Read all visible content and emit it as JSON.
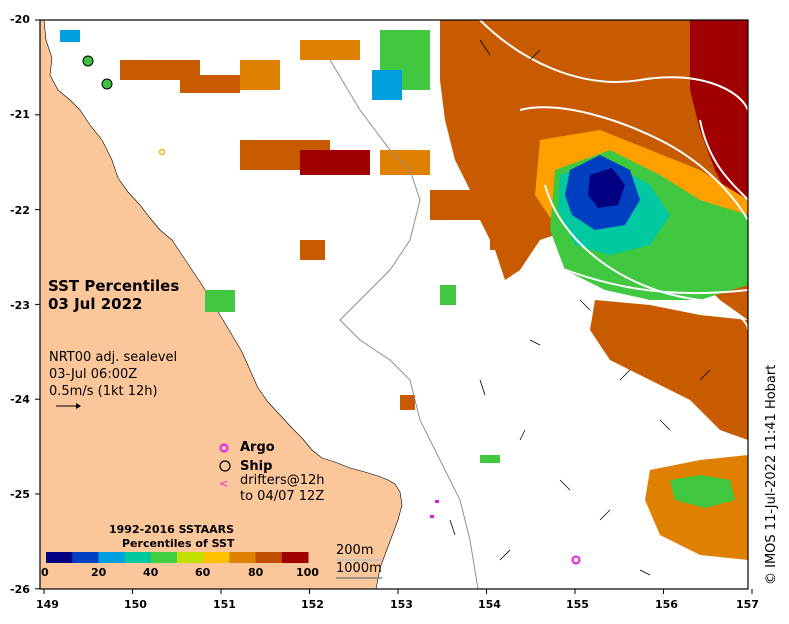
{
  "map": {
    "title": "SST Percentiles",
    "date": "03 Jul 2022",
    "info_lines": [
      "NRT00 adj. sealevel",
      "03-Jul 06:00Z",
      "0.5m/s (1kt 12h)"
    ],
    "legend": {
      "argo": "Argo",
      "ship": "Ship",
      "drifters_line1": "drifters@12h",
      "drifters_line2": "to 04/07 12Z",
      "drifter_symbol": "<"
    },
    "colorbar": {
      "title1": "1992-2016 SSTAARS",
      "title2": "Percentiles of SST",
      "ticks": [
        "0",
        "20",
        "40",
        "60",
        "80",
        "100"
      ],
      "colors": [
        "#000080",
        "#0040c0",
        "#00a0e0",
        "#00c8a0",
        "#40d040",
        "#c0e000",
        "#ffc000",
        "#e08000",
        "#c05000",
        "#a00000"
      ]
    },
    "contours": [
      "200m",
      "1000m"
    ],
    "y_axis": [
      "-20",
      "-21",
      "-22",
      "-23",
      "-24",
      "-25",
      "-26"
    ],
    "x_axis": [
      "149",
      "150",
      "151",
      "152",
      "153",
      "154",
      "155",
      "156",
      "157"
    ],
    "credit": "© IMOS 11-Jul-2022 11:41 Hobart",
    "colors": {
      "land": "#fbc79a",
      "sea": "#ffffff"
    }
  }
}
